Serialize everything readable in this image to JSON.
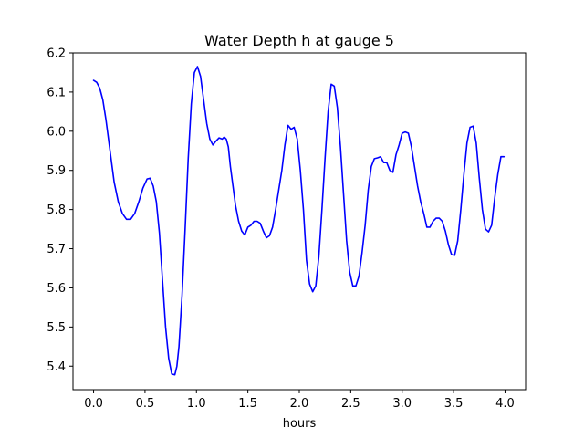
{
  "chart_data": {
    "type": "line",
    "title": "Water Depth h at gauge 5",
    "xlabel": "hours",
    "ylabel": "",
    "xlim": [
      -0.2,
      4.2
    ],
    "ylim": [
      5.34,
      6.2
    ],
    "xticks": [
      0.0,
      0.5,
      1.0,
      1.5,
      2.0,
      2.5,
      3.0,
      3.5,
      4.0
    ],
    "xtick_labels": [
      "0.0",
      "0.5",
      "1.0",
      "1.5",
      "2.0",
      "2.5",
      "3.0",
      "3.5",
      "4.0"
    ],
    "yticks": [
      5.4,
      5.5,
      5.6,
      5.7,
      5.8,
      5.9,
      6.0,
      6.1,
      6.2
    ],
    "ytick_labels": [
      "5.4",
      "5.5",
      "5.6",
      "5.7",
      "5.8",
      "5.9",
      "6.0",
      "6.1",
      "6.2"
    ],
    "grid": false,
    "legend": "none",
    "series": [
      {
        "color": "#0000ff",
        "x": [
          0.0,
          0.03,
          0.06,
          0.09,
          0.12,
          0.16,
          0.2,
          0.24,
          0.28,
          0.32,
          0.36,
          0.4,
          0.44,
          0.48,
          0.52,
          0.55,
          0.58,
          0.61,
          0.64,
          0.67,
          0.7,
          0.73,
          0.76,
          0.79,
          0.81,
          0.83,
          0.86,
          0.89,
          0.92,
          0.95,
          0.98,
          1.01,
          1.04,
          1.07,
          1.1,
          1.13,
          1.16,
          1.19,
          1.22,
          1.25,
          1.27,
          1.29,
          1.31,
          1.33,
          1.35,
          1.38,
          1.41,
          1.44,
          1.47,
          1.5,
          1.53,
          1.56,
          1.59,
          1.62,
          1.65,
          1.68,
          1.71,
          1.74,
          1.77,
          1.8,
          1.83,
          1.86,
          1.89,
          1.92,
          1.95,
          1.98,
          2.01,
          2.04,
          2.07,
          2.1,
          2.13,
          2.16,
          2.19,
          2.22,
          2.25,
          2.28,
          2.31,
          2.34,
          2.37,
          2.4,
          2.43,
          2.46,
          2.49,
          2.52,
          2.55,
          2.58,
          2.61,
          2.64,
          2.67,
          2.7,
          2.73,
          2.76,
          2.79,
          2.82,
          2.85,
          2.88,
          2.91,
          2.94,
          2.97,
          3.0,
          3.03,
          3.06,
          3.09,
          3.12,
          3.15,
          3.18,
          3.21,
          3.24,
          3.27,
          3.3,
          3.33,
          3.36,
          3.39,
          3.42,
          3.45,
          3.48,
          3.51,
          3.54,
          3.57,
          3.6,
          3.63,
          3.66,
          3.69,
          3.72,
          3.75,
          3.78,
          3.81,
          3.84,
          3.87,
          3.9,
          3.93,
          3.96,
          3.99
        ],
        "y": [
          6.13,
          6.125,
          6.11,
          6.08,
          6.03,
          5.95,
          5.87,
          5.82,
          5.79,
          5.775,
          5.775,
          5.79,
          5.82,
          5.855,
          5.878,
          5.88,
          5.86,
          5.82,
          5.74,
          5.62,
          5.5,
          5.42,
          5.38,
          5.378,
          5.4,
          5.45,
          5.58,
          5.75,
          5.93,
          6.07,
          6.15,
          6.165,
          6.14,
          6.08,
          6.02,
          5.98,
          5.965,
          5.975,
          5.983,
          5.98,
          5.985,
          5.98,
          5.96,
          5.91,
          5.87,
          5.81,
          5.77,
          5.745,
          5.735,
          5.755,
          5.76,
          5.77,
          5.77,
          5.765,
          5.745,
          5.728,
          5.733,
          5.755,
          5.8,
          5.85,
          5.9,
          5.965,
          6.015,
          6.005,
          6.01,
          5.98,
          5.9,
          5.8,
          5.67,
          5.61,
          5.59,
          5.605,
          5.68,
          5.8,
          5.93,
          6.05,
          6.12,
          6.115,
          6.06,
          5.96,
          5.84,
          5.72,
          5.64,
          5.605,
          5.605,
          5.63,
          5.69,
          5.76,
          5.85,
          5.91,
          5.93,
          5.932,
          5.935,
          5.92,
          5.92,
          5.9,
          5.895,
          5.94,
          5.965,
          5.995,
          5.998,
          5.995,
          5.96,
          5.91,
          5.86,
          5.82,
          5.79,
          5.755,
          5.755,
          5.77,
          5.778,
          5.778,
          5.77,
          5.745,
          5.71,
          5.685,
          5.683,
          5.72,
          5.8,
          5.89,
          5.97,
          6.01,
          6.013,
          5.97,
          5.88,
          5.8,
          5.75,
          5.743,
          5.76,
          5.83,
          5.89,
          5.935,
          5.935
        ]
      }
    ]
  }
}
